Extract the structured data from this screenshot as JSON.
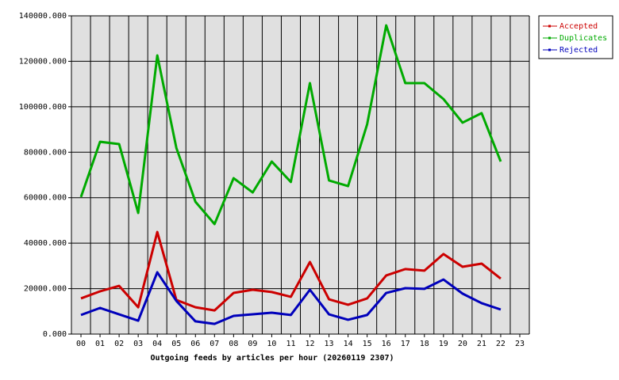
{
  "chart_data": {
    "type": "line",
    "title": "Outgoing feeds by articles per hour (20260119 2307)",
    "categories": [
      "00",
      "01",
      "02",
      "03",
      "04",
      "05",
      "06",
      "07",
      "08",
      "09",
      "10",
      "11",
      "12",
      "13",
      "14",
      "15",
      "16",
      "17",
      "18",
      "19",
      "20",
      "21",
      "22",
      "23"
    ],
    "series": [
      {
        "name": "Accepted",
        "color": "#cc0000",
        "values": [
          15700,
          18800,
          21200,
          11800,
          44900,
          15000,
          11800,
          10400,
          18100,
          19500,
          18500,
          16400,
          31700,
          15300,
          12900,
          15700,
          25800,
          28600,
          27900,
          35200,
          29600,
          31000,
          24400,
          null
        ]
      },
      {
        "name": "Duplicates",
        "color": "#00aa00",
        "values": [
          60300,
          84600,
          83600,
          53300,
          122600,
          81900,
          58200,
          48400,
          68600,
          62300,
          75900,
          66900,
          110400,
          67600,
          65100,
          92300,
          135800,
          110400,
          110400,
          103400,
          93000,
          97200,
          75900,
          null
        ]
      },
      {
        "name": "Rejected",
        "color": "#0000bb",
        "values": [
          8400,
          11500,
          8700,
          5900,
          27200,
          14600,
          5600,
          4500,
          8000,
          8700,
          9400,
          8400,
          19500,
          8700,
          6300,
          8400,
          18100,
          20200,
          19900,
          24000,
          17800,
          13600,
          10800,
          null
        ]
      }
    ],
    "ylim": [
      0,
      140000
    ],
    "yticks": [
      {
        "value": 0,
        "label": "0.000"
      },
      {
        "value": 20000,
        "label": "20000.000"
      },
      {
        "value": 40000,
        "label": "40000.000"
      },
      {
        "value": 60000,
        "label": "60000.000"
      },
      {
        "value": 80000,
        "label": "80000.000"
      },
      {
        "value": 100000,
        "label": "100000.000"
      },
      {
        "value": 120000,
        "label": "120000.000"
      },
      {
        "value": 140000,
        "label": "140000.000"
      }
    ],
    "grid": true,
    "legend": "top-right"
  }
}
